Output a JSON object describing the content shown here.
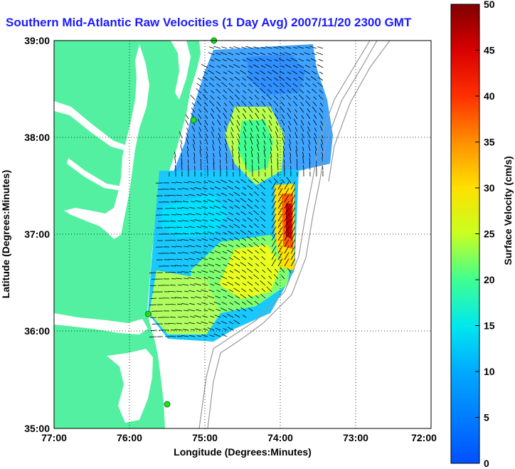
{
  "title": "Southern Mid-Atlantic Raw Velocities (1 Day Avg) 2007/11/20 2300 GMT",
  "xlabel": "Longitude (Degrees:Minutes)",
  "ylabel": "Latitude (Degrees:Minutes)",
  "x_ticks": [
    "77:00",
    "76:00",
    "75:00",
    "74:00",
    "73:00",
    "72:00"
  ],
  "y_ticks": [
    "39:00",
    "38:00",
    "37:00",
    "36:00",
    "35:00"
  ],
  "colorbar": {
    "label": "Surface Velocity (cm/s)",
    "ticks": [
      "50",
      "45",
      "40",
      "35",
      "30",
      "25",
      "20",
      "15",
      "10",
      "5",
      "0"
    ],
    "range_cm_s": [
      0,
      50
    ]
  },
  "colors": {
    "land": "#52f0a0",
    "water": "#ffffff",
    "title": "#1a1aff",
    "grid": "#000000",
    "station": "#22dd22"
  },
  "map_extent": {
    "lon": [
      -77,
      -72
    ],
    "lat": [
      35,
      39
    ]
  },
  "stations": [
    {
      "lon": -74.88,
      "lat": 39.0
    },
    {
      "lon": -75.15,
      "lat": 38.18
    },
    {
      "lon": -75.75,
      "lat": 36.18
    },
    {
      "lon": -75.5,
      "lat": 35.25
    }
  ]
}
